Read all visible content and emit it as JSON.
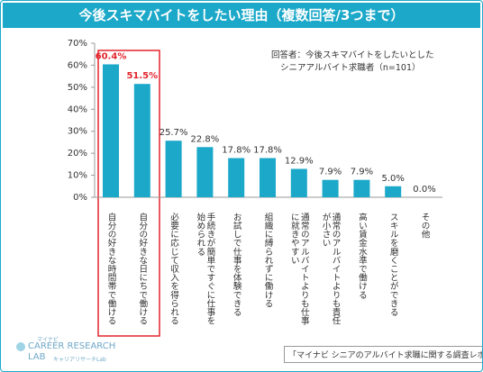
{
  "chart_data": {
    "type": "bar",
    "title": "今後スキマバイトをしたい理由（複数回答/3つまで）",
    "annotation": [
      "回答者：今後スキマバイトをしたいとした",
      "シニアアルバイト求職者（n=101）"
    ],
    "source": "「マイナビ シニアのアルバイト求職に関する調査レポート」",
    "logo": [
      "マイナビ",
      "CAREER RESEARCH",
      "LAB",
      "キャリアリサーチLab"
    ],
    "categories": [
      "自分の好きな時間帯で働ける",
      "自分の好きな日にちで働ける",
      "必要に応じて収入を得られる",
      "手続きが簡単ですぐに仕事を始められる",
      "お試しで仕事を体験できる",
      "組織に縛られずに働ける",
      "通常のアルバイトよりも仕事に就きやすい",
      "通常のアルバイトよりも責任が小さい",
      "高い賃金水準で働ける",
      "スキルを磨くことができる",
      "その他"
    ],
    "values": [
      60.4,
      51.5,
      25.7,
      22.8,
      17.8,
      17.8,
      12.9,
      7.9,
      7.9,
      5.0,
      0.0
    ],
    "value_labels": [
      "60.4%",
      "51.5%",
      "25.7%",
      "22.8%",
      "17.8%",
      "17.8%",
      "12.9%",
      "7.9%",
      "7.9%",
      "5.0%",
      "0.0%"
    ],
    "value_label_colors": [
      "#e3232b",
      "#e3232b",
      "#333333",
      "#333333",
      "#333333",
      "#333333",
      "#333333",
      "#333333",
      "#333333",
      "#333333",
      "#333333"
    ],
    "color": "#1ba8c9",
    "ylim": [
      0,
      70
    ],
    "yticks": [
      {
        "value": 0,
        "label": "0%"
      },
      {
        "value": 10,
        "label": "10%"
      },
      {
        "value": 20,
        "label": "20%"
      },
      {
        "value": 30,
        "label": "30%"
      },
      {
        "value": 40,
        "label": "40%"
      },
      {
        "value": 50,
        "label": "50%"
      },
      {
        "value": 60,
        "label": "60%"
      },
      {
        "value": 70,
        "label": "70%"
      }
    ],
    "grid": false
  }
}
